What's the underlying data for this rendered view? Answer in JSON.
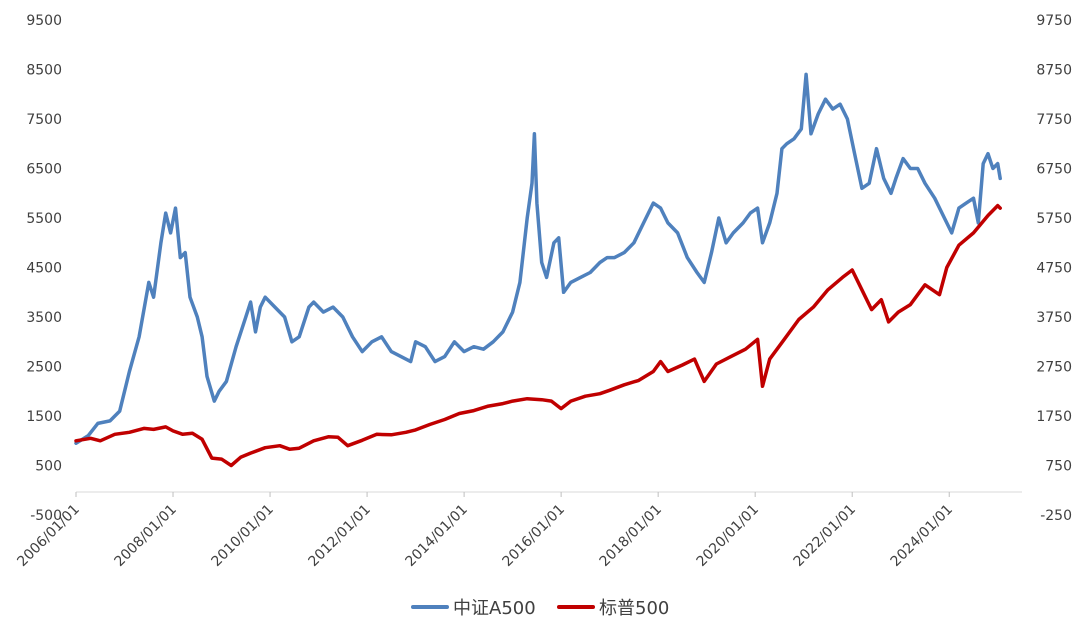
{
  "chart_data": {
    "type": "line",
    "title": "",
    "x_ticks": [
      "2006/01/01",
      "2008/01/01",
      "2010/01/01",
      "2012/01/01",
      "2014/01/01",
      "2016/01/01",
      "2018/01/01",
      "2020/01/01",
      "2022/01/01",
      "2024/01/01"
    ],
    "x_range": [
      2006.0,
      2025.5
    ],
    "y_left": {
      "min": -500,
      "max": 9500,
      "ticks": [
        -500,
        500,
        1500,
        2500,
        3500,
        4500,
        5500,
        6500,
        7500,
        8500,
        9500
      ]
    },
    "y_right": {
      "min": -250,
      "max": 9750,
      "ticks": [
        -250,
        750,
        1750,
        2750,
        3750,
        4750,
        5750,
        6750,
        7750,
        8750,
        9750
      ]
    },
    "series": [
      {
        "name": "中证A500",
        "axis": "left",
        "color": "#4F81BD",
        "points": [
          [
            2006.0,
            950
          ],
          [
            2006.25,
            1100
          ],
          [
            2006.45,
            1350
          ],
          [
            2006.7,
            1400
          ],
          [
            2006.9,
            1600
          ],
          [
            2007.1,
            2400
          ],
          [
            2007.3,
            3100
          ],
          [
            2007.5,
            4200
          ],
          [
            2007.6,
            3900
          ],
          [
            2007.75,
            5000
          ],
          [
            2007.85,
            5600
          ],
          [
            2007.95,
            5200
          ],
          [
            2008.05,
            5700
          ],
          [
            2008.15,
            4700
          ],
          [
            2008.25,
            4800
          ],
          [
            2008.35,
            3900
          ],
          [
            2008.5,
            3500
          ],
          [
            2008.6,
            3100
          ],
          [
            2008.7,
            2300
          ],
          [
            2008.85,
            1800
          ],
          [
            2008.95,
            2000
          ],
          [
            2009.1,
            2200
          ],
          [
            2009.3,
            2900
          ],
          [
            2009.5,
            3500
          ],
          [
            2009.6,
            3800
          ],
          [
            2009.7,
            3200
          ],
          [
            2009.8,
            3700
          ],
          [
            2009.9,
            3900
          ],
          [
            2010.1,
            3700
          ],
          [
            2010.3,
            3500
          ],
          [
            2010.45,
            3000
          ],
          [
            2010.6,
            3100
          ],
          [
            2010.8,
            3700
          ],
          [
            2010.9,
            3800
          ],
          [
            2011.1,
            3600
          ],
          [
            2011.3,
            3700
          ],
          [
            2011.5,
            3500
          ],
          [
            2011.7,
            3100
          ],
          [
            2011.9,
            2800
          ],
          [
            2012.1,
            3000
          ],
          [
            2012.3,
            3100
          ],
          [
            2012.5,
            2800
          ],
          [
            2012.7,
            2700
          ],
          [
            2012.9,
            2600
          ],
          [
            2013.0,
            3000
          ],
          [
            2013.2,
            2900
          ],
          [
            2013.4,
            2600
          ],
          [
            2013.6,
            2700
          ],
          [
            2013.8,
            3000
          ],
          [
            2014.0,
            2800
          ],
          [
            2014.2,
            2900
          ],
          [
            2014.4,
            2850
          ],
          [
            2014.6,
            3000
          ],
          [
            2014.8,
            3200
          ],
          [
            2015.0,
            3600
          ],
          [
            2015.15,
            4200
          ],
          [
            2015.3,
            5500
          ],
          [
            2015.4,
            6200
          ],
          [
            2015.45,
            7200
          ],
          [
            2015.5,
            5800
          ],
          [
            2015.6,
            4600
          ],
          [
            2015.7,
            4300
          ],
          [
            2015.85,
            5000
          ],
          [
            2015.95,
            5100
          ],
          [
            2016.05,
            4000
          ],
          [
            2016.2,
            4200
          ],
          [
            2016.4,
            4300
          ],
          [
            2016.6,
            4400
          ],
          [
            2016.8,
            4600
          ],
          [
            2016.95,
            4700
          ],
          [
            2017.1,
            4700
          ],
          [
            2017.3,
            4800
          ],
          [
            2017.5,
            5000
          ],
          [
            2017.7,
            5400
          ],
          [
            2017.9,
            5800
          ],
          [
            2018.05,
            5700
          ],
          [
            2018.2,
            5400
          ],
          [
            2018.4,
            5200
          ],
          [
            2018.6,
            4700
          ],
          [
            2018.8,
            4400
          ],
          [
            2018.95,
            4200
          ],
          [
            2019.1,
            4800
          ],
          [
            2019.25,
            5500
          ],
          [
            2019.4,
            5000
          ],
          [
            2019.55,
            5200
          ],
          [
            2019.75,
            5400
          ],
          [
            2019.9,
            5600
          ],
          [
            2020.05,
            5700
          ],
          [
            2020.15,
            5000
          ],
          [
            2020.3,
            5400
          ],
          [
            2020.45,
            6000
          ],
          [
            2020.55,
            6900
          ],
          [
            2020.65,
            7000
          ],
          [
            2020.8,
            7100
          ],
          [
            2020.95,
            7300
          ],
          [
            2021.05,
            8400
          ],
          [
            2021.15,
            7200
          ],
          [
            2021.3,
            7600
          ],
          [
            2021.45,
            7900
          ],
          [
            2021.6,
            7700
          ],
          [
            2021.75,
            7800
          ],
          [
            2021.9,
            7500
          ],
          [
            2022.05,
            6800
          ],
          [
            2022.2,
            6100
          ],
          [
            2022.35,
            6200
          ],
          [
            2022.5,
            6900
          ],
          [
            2022.65,
            6300
          ],
          [
            2022.8,
            6000
          ],
          [
            2022.9,
            6300
          ],
          [
            2023.05,
            6700
          ],
          [
            2023.2,
            6500
          ],
          [
            2023.35,
            6500
          ],
          [
            2023.5,
            6200
          ],
          [
            2023.7,
            5900
          ],
          [
            2023.9,
            5500
          ],
          [
            2024.05,
            5200
          ],
          [
            2024.2,
            5700
          ],
          [
            2024.35,
            5800
          ],
          [
            2024.5,
            5900
          ],
          [
            2024.6,
            5400
          ],
          [
            2024.7,
            6600
          ],
          [
            2024.8,
            6800
          ],
          [
            2024.9,
            6500
          ],
          [
            2025.0,
            6600
          ],
          [
            2025.05,
            6300
          ]
        ]
      },
      {
        "name": "标普500",
        "axis": "right",
        "color": "#C00000",
        "points": [
          [
            2006.0,
            1250
          ],
          [
            2006.3,
            1300
          ],
          [
            2006.5,
            1250
          ],
          [
            2006.8,
            1380
          ],
          [
            2007.1,
            1420
          ],
          [
            2007.4,
            1500
          ],
          [
            2007.6,
            1480
          ],
          [
            2007.85,
            1530
          ],
          [
            2008.0,
            1450
          ],
          [
            2008.2,
            1380
          ],
          [
            2008.4,
            1400
          ],
          [
            2008.6,
            1280
          ],
          [
            2008.8,
            900
          ],
          [
            2009.0,
            880
          ],
          [
            2009.2,
            750
          ],
          [
            2009.4,
            920
          ],
          [
            2009.6,
            1000
          ],
          [
            2009.9,
            1110
          ],
          [
            2010.2,
            1150
          ],
          [
            2010.4,
            1080
          ],
          [
            2010.6,
            1100
          ],
          [
            2010.9,
            1250
          ],
          [
            2011.2,
            1330
          ],
          [
            2011.4,
            1320
          ],
          [
            2011.6,
            1150
          ],
          [
            2011.9,
            1260
          ],
          [
            2012.2,
            1380
          ],
          [
            2012.5,
            1370
          ],
          [
            2012.8,
            1420
          ],
          [
            2013.0,
            1470
          ],
          [
            2013.3,
            1580
          ],
          [
            2013.6,
            1680
          ],
          [
            2013.9,
            1800
          ],
          [
            2014.2,
            1860
          ],
          [
            2014.5,
            1950
          ],
          [
            2014.8,
            2000
          ],
          [
            2015.0,
            2050
          ],
          [
            2015.3,
            2100
          ],
          [
            2015.6,
            2080
          ],
          [
            2015.8,
            2050
          ],
          [
            2016.0,
            1900
          ],
          [
            2016.2,
            2050
          ],
          [
            2016.5,
            2150
          ],
          [
            2016.8,
            2200
          ],
          [
            2017.0,
            2270
          ],
          [
            2017.3,
            2380
          ],
          [
            2017.6,
            2470
          ],
          [
            2017.9,
            2650
          ],
          [
            2018.05,
            2850
          ],
          [
            2018.2,
            2650
          ],
          [
            2018.5,
            2780
          ],
          [
            2018.75,
            2900
          ],
          [
            2018.95,
            2450
          ],
          [
            2019.2,
            2800
          ],
          [
            2019.5,
            2950
          ],
          [
            2019.8,
            3100
          ],
          [
            2020.05,
            3300
          ],
          [
            2020.15,
            2350
          ],
          [
            2020.3,
            2900
          ],
          [
            2020.6,
            3300
          ],
          [
            2020.9,
            3700
          ],
          [
            2021.2,
            3950
          ],
          [
            2021.5,
            4300
          ],
          [
            2021.8,
            4550
          ],
          [
            2022.0,
            4700
          ],
          [
            2022.2,
            4300
          ],
          [
            2022.4,
            3900
          ],
          [
            2022.6,
            4100
          ],
          [
            2022.75,
            3650
          ],
          [
            2022.95,
            3850
          ],
          [
            2023.2,
            4000
          ],
          [
            2023.5,
            4400
          ],
          [
            2023.8,
            4200
          ],
          [
            2023.95,
            4750
          ],
          [
            2024.2,
            5200
          ],
          [
            2024.5,
            5450
          ],
          [
            2024.8,
            5800
          ],
          [
            2025.0,
            6000
          ],
          [
            2025.05,
            5950
          ]
        ]
      }
    ]
  }
}
